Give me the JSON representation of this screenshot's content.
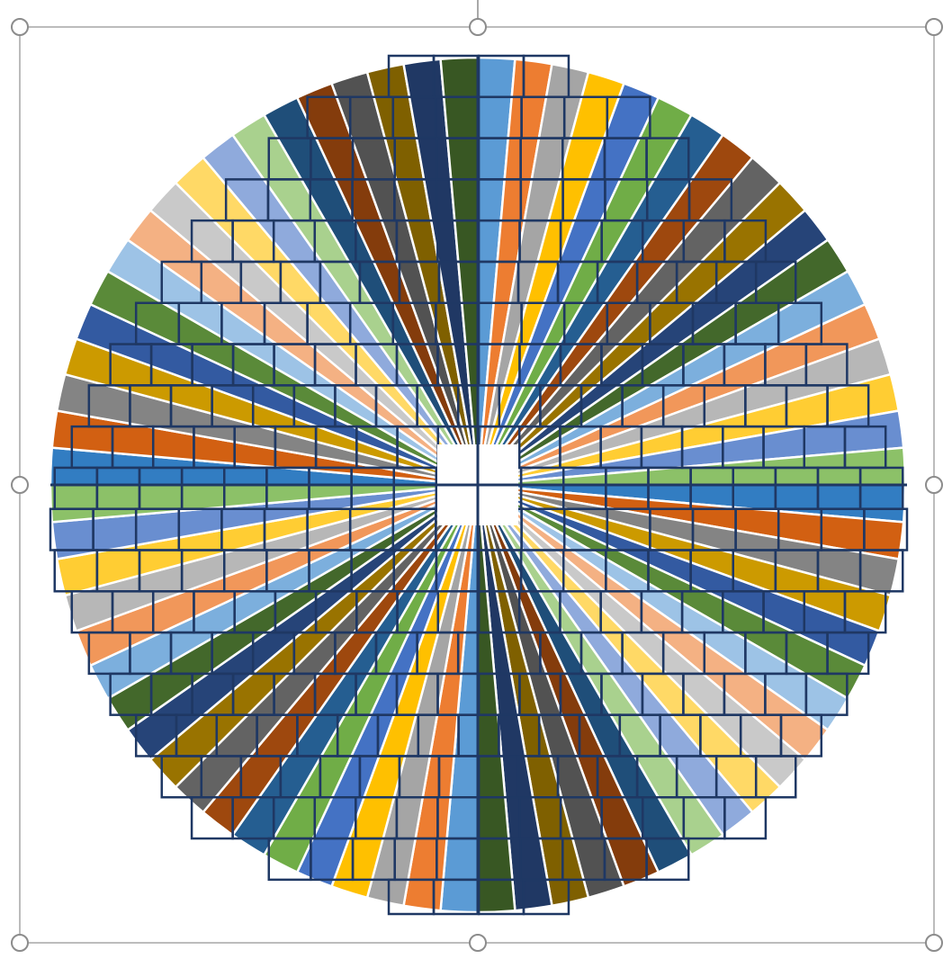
{
  "selection": {
    "handles": [
      "top-left",
      "top-center",
      "top-right",
      "middle-left",
      "middle-right",
      "bottom-left",
      "bottom-center",
      "bottom-right"
    ],
    "frame_color": "#a6a6a6",
    "handle_color": "#8c8c8c"
  },
  "chart_data": {
    "type": "pie",
    "title": "",
    "legend": "none",
    "slice_count": 72,
    "values": [
      1,
      1,
      1,
      1,
      1,
      1,
      1,
      1,
      1,
      1,
      1,
      1,
      1,
      1,
      1,
      1,
      1,
      1,
      1,
      1,
      1,
      1,
      1,
      1,
      1,
      1,
      1,
      1,
      1,
      1,
      1,
      1,
      1,
      1,
      1,
      1,
      1,
      1,
      1,
      1,
      1,
      1,
      1,
      1,
      1,
      1,
      1,
      1,
      1,
      1,
      1,
      1,
      1,
      1,
      1,
      1,
      1,
      1,
      1,
      1,
      1,
      1,
      1,
      1,
      1,
      1,
      1,
      1,
      1,
      1,
      1,
      1
    ],
    "start_angle_deg": 90,
    "direction": "clockwise",
    "slice_border_color": "#ffffff",
    "palette": [
      "#5b9bd5",
      "#ed7d31",
      "#a5a5a5",
      "#ffc000",
      "#4472c4",
      "#70ad47",
      "#255e91",
      "#9e480e",
      "#636363",
      "#997300",
      "#264478",
      "#43682b",
      "#7cafdd",
      "#f1975a",
      "#b7b7b7",
      "#ffcd33",
      "#698ed0",
      "#8cc168",
      "#327dc2",
      "#d26012",
      "#848484",
      "#cc9a00",
      "#335aa1",
      "#5a8a39",
      "#9dc3e6",
      "#f4b183",
      "#c9c9c9",
      "#ffd966",
      "#8faadc",
      "#a9d18e",
      "#1f4e79",
      "#843c0c",
      "#525252",
      "#7f6000",
      "#203864",
      "#385723"
    ],
    "overlay_grid": {
      "rows": [
        {
          "y_from": 0.0,
          "y_to": 0.048,
          "x_from": 0.395,
          "x_to": 0.605,
          "cols": 4
        },
        {
          "y_from": 0.048,
          "y_to": 0.096,
          "x_from": 0.3,
          "x_to": 0.7,
          "cols": 8
        },
        {
          "y_from": 0.096,
          "y_to": 0.144,
          "x_from": 0.255,
          "x_to": 0.745,
          "cols": 10
        },
        {
          "y_from": 0.144,
          "y_to": 0.192,
          "x_from": 0.205,
          "x_to": 0.795,
          "cols": 12
        },
        {
          "y_from": 0.192,
          "y_to": 0.24,
          "x_from": 0.165,
          "x_to": 0.835,
          "cols": 14
        },
        {
          "y_from": 0.24,
          "y_to": 0.288,
          "x_from": 0.13,
          "x_to": 0.87,
          "cols": 16
        },
        {
          "y_from": 0.288,
          "y_to": 0.336,
          "x_from": 0.1,
          "x_to": 0.9,
          "cols": 16
        },
        {
          "y_from": 0.336,
          "y_to": 0.384,
          "x_from": 0.07,
          "x_to": 0.93,
          "cols": 18
        },
        {
          "y_from": 0.384,
          "y_to": 0.432,
          "x_from": 0.045,
          "x_to": 0.955,
          "cols": 19
        },
        {
          "y_from": 0.432,
          "y_to": 0.48,
          "x_from": 0.025,
          "x_to": 0.975,
          "cols": 20
        },
        {
          "y_from": 0.48,
          "y_to": 0.528,
          "x_from": 0.005,
          "x_to": 0.995,
          "cols": 20
        },
        {
          "y_from": 0.528,
          "y_to": 0.576,
          "x_from": 0.0,
          "x_to": 1.0,
          "cols": 20
        },
        {
          "y_from": 0.576,
          "y_to": 0.624,
          "x_from": 0.005,
          "x_to": 0.995,
          "cols": 20
        },
        {
          "y_from": 0.624,
          "y_to": 0.672,
          "x_from": 0.025,
          "x_to": 0.975,
          "cols": 20
        },
        {
          "y_from": 0.672,
          "y_to": 0.72,
          "x_from": 0.045,
          "x_to": 0.955,
          "cols": 19
        },
        {
          "y_from": 0.72,
          "y_to": 0.768,
          "x_from": 0.07,
          "x_to": 0.93,
          "cols": 18
        },
        {
          "y_from": 0.768,
          "y_to": 0.816,
          "x_from": 0.1,
          "x_to": 0.9,
          "cols": 17
        },
        {
          "y_from": 0.816,
          "y_to": 0.864,
          "x_from": 0.13,
          "x_to": 0.87,
          "cols": 16
        },
        {
          "y_from": 0.864,
          "y_to": 0.912,
          "x_from": 0.165,
          "x_to": 0.835,
          "cols": 14
        },
        {
          "y_from": 0.912,
          "y_to": 0.96,
          "x_from": 0.255,
          "x_to": 0.745,
          "cols": 10
        },
        {
          "y_from": 0.96,
          "y_to": 1.0,
          "x_from": 0.395,
          "x_to": 0.605,
          "cols": 4
        }
      ],
      "center_gap": true
    }
  }
}
